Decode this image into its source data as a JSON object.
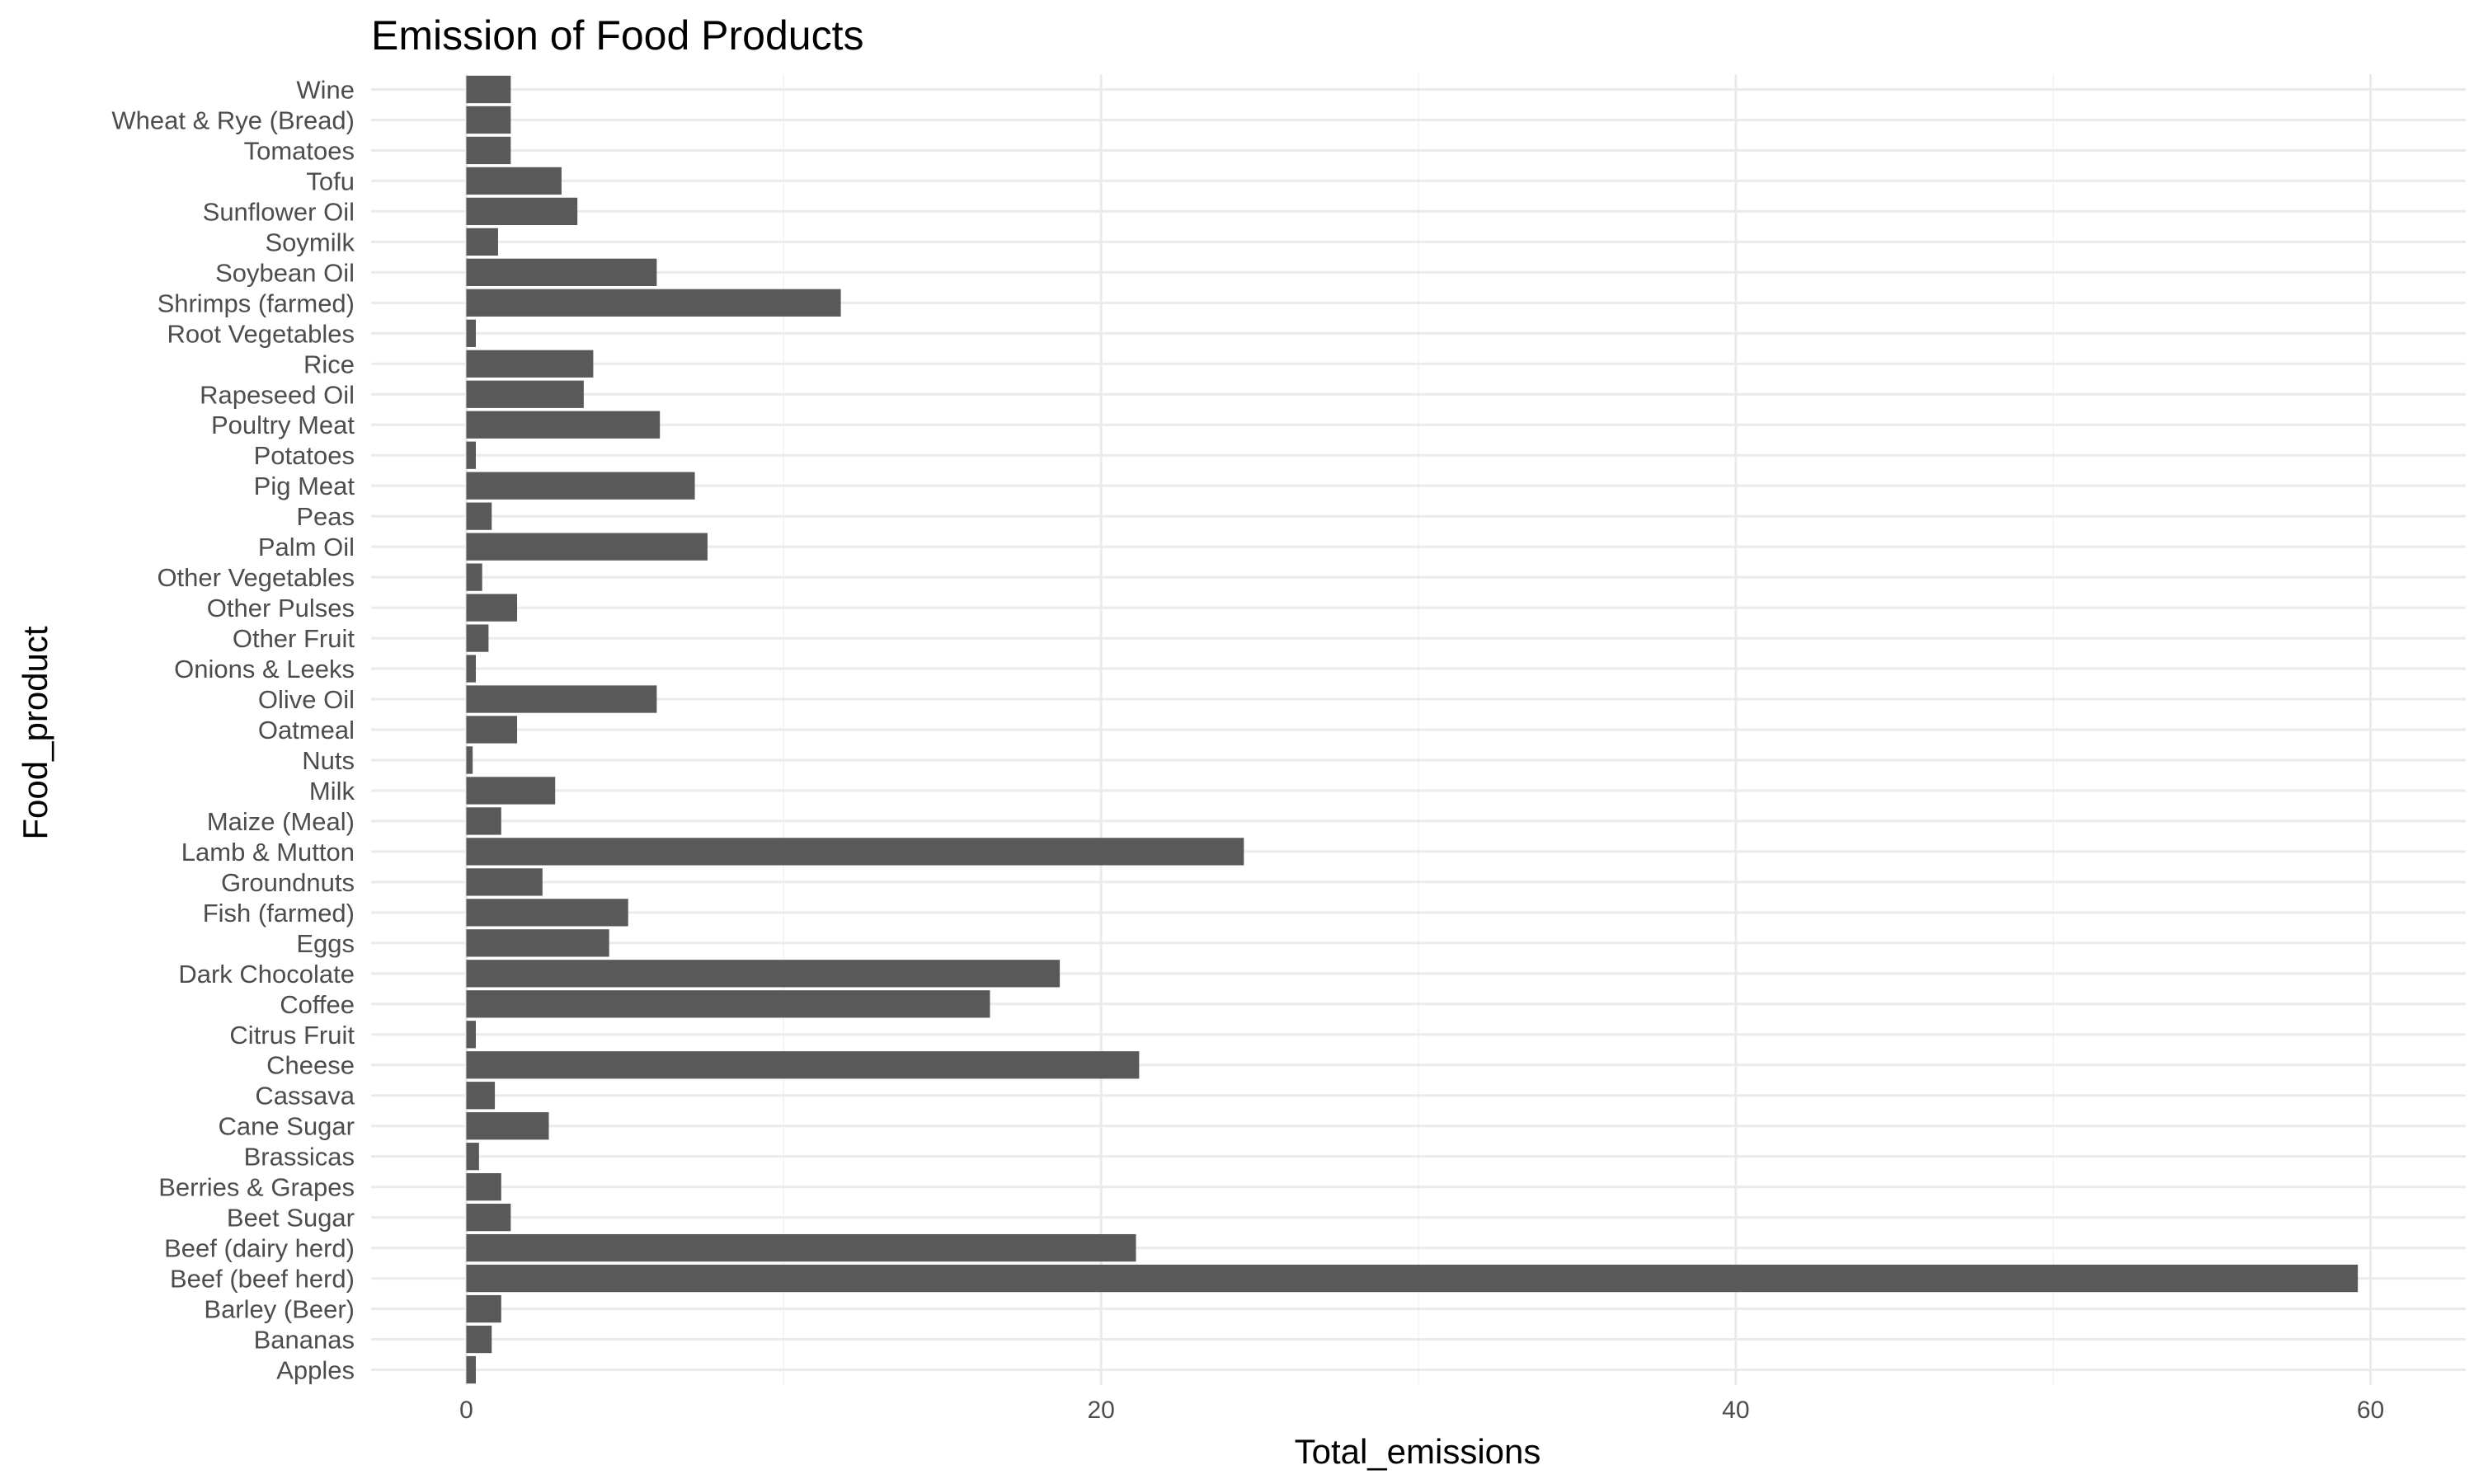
{
  "chart_data": {
    "type": "bar",
    "orientation": "horizontal",
    "title": "Emission of Food Products",
    "xlabel": "Total_emissions",
    "ylabel": "Food_product",
    "xlim": [
      -3,
      63
    ],
    "x_ticks": [
      0,
      20,
      40,
      60
    ],
    "x_tick_labels": [
      "0",
      "20",
      "40",
      "60"
    ],
    "grid": true,
    "legend": "none",
    "bar_color": "#595959",
    "grid_color": "#ebebeb",
    "categories": [
      "Apples",
      "Bananas",
      "Barley (Beer)",
      "Beef (beef herd)",
      "Beef (dairy herd)",
      "Beet Sugar",
      "Berries & Grapes",
      "Brassicas",
      "Cane Sugar",
      "Cassava",
      "Cheese",
      "Citrus Fruit",
      "Coffee",
      "Dark Chocolate",
      "Eggs",
      "Fish (farmed)",
      "Groundnuts",
      "Lamb & Mutton",
      "Maize (Meal)",
      "Milk",
      "Nuts",
      "Oatmeal",
      "Olive Oil",
      "Onions & Leeks",
      "Other Fruit",
      "Other Pulses",
      "Other Vegetables",
      "Palm Oil",
      "Peas",
      "Pig Meat",
      "Potatoes",
      "Poultry Meat",
      "Rapeseed Oil",
      "Rice",
      "Root Vegetables",
      "Shrimps (farmed)",
      "Soybean Oil",
      "Soymilk",
      "Sunflower Oil",
      "Tofu",
      "Tomatoes",
      "Wheat & Rye (Bread)",
      "Wine"
    ],
    "values": [
      0.3,
      0.8,
      1.1,
      59.6,
      21.1,
      1.4,
      1.1,
      0.4,
      2.6,
      0.9,
      21.2,
      0.3,
      16.5,
      18.7,
      4.5,
      5.1,
      2.4,
      24.5,
      1.1,
      2.8,
      0.2,
      1.6,
      6.0,
      0.3,
      0.7,
      1.6,
      0.5,
      7.6,
      0.8,
      7.2,
      0.3,
      6.1,
      3.7,
      4.0,
      0.3,
      11.8,
      6.0,
      1.0,
      3.5,
      3.0,
      1.4,
      1.4,
      1.4
    ]
  }
}
